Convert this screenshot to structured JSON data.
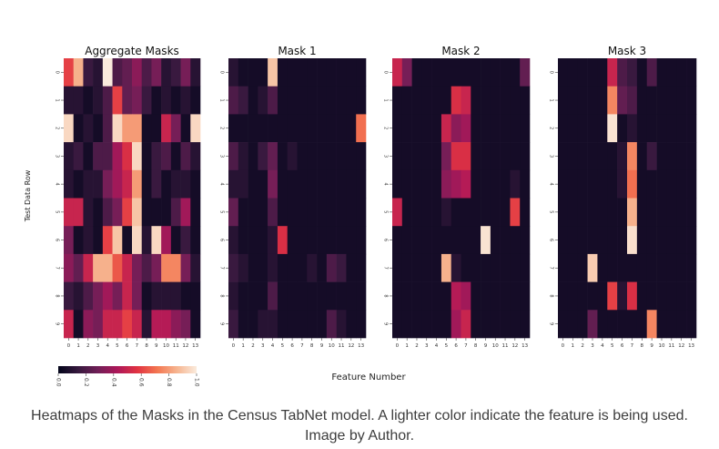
{
  "figure": {
    "ylabel": "Test Data Row",
    "xlabel": "Feature Number",
    "colorbar": {
      "ticks": [
        "0.0",
        "0.2",
        "0.4",
        "0.6",
        "0.8",
        "1.0"
      ],
      "colors": [
        "#03051a",
        "#36193e",
        "#701f57",
        "#ad1759",
        "#e13342",
        "#f37651",
        "#f6b48f",
        "#faebdd"
      ]
    }
  },
  "caption": "Heatmaps of the Masks in the Census TabNet model. A lighter color indicate the feature is being used. Image by Author.",
  "chart_data": [
    {
      "type": "heatmap",
      "title": "Aggregate Masks",
      "x": [
        "0",
        "1",
        "2",
        "3",
        "4",
        "5",
        "6",
        "7",
        "8",
        "9",
        "10",
        "11",
        "12",
        "13"
      ],
      "y": [
        "0",
        "1",
        "2",
        "3",
        "4",
        "5",
        "6",
        "7",
        "8",
        "9"
      ],
      "values": [
        [
          0.6,
          0.85,
          0.15,
          0.1,
          1.0,
          0.2,
          0.25,
          0.35,
          0.2,
          0.3,
          0.1,
          0.15,
          0.3,
          0.1
        ],
        [
          0.1,
          0.1,
          0.05,
          0.1,
          0.2,
          0.6,
          0.25,
          0.3,
          0.15,
          0.05,
          0.1,
          0.05,
          0.1,
          0.05
        ],
        [
          0.95,
          0.05,
          0.1,
          0.05,
          0.2,
          0.95,
          0.8,
          0.8,
          0.05,
          0.05,
          0.5,
          0.3,
          0.05,
          0.95
        ],
        [
          0.1,
          0.15,
          0.05,
          0.2,
          0.2,
          0.4,
          0.55,
          0.95,
          0.05,
          0.15,
          0.2,
          0.05,
          0.2,
          0.1
        ],
        [
          0.1,
          0.05,
          0.1,
          0.1,
          0.3,
          0.4,
          0.5,
          0.8,
          0.05,
          0.15,
          0.05,
          0.1,
          0.1,
          0.05
        ],
        [
          0.5,
          0.5,
          0.1,
          0.05,
          0.2,
          0.3,
          0.6,
          0.9,
          0.05,
          0.05,
          0.05,
          0.2,
          0.4,
          0.05
        ],
        [
          0.3,
          0.05,
          0.1,
          0.05,
          0.6,
          0.9,
          0.05,
          0.95,
          0.1,
          0.95,
          0.4,
          0.05,
          0.15,
          0.05
        ],
        [
          0.35,
          0.25,
          0.5,
          0.85,
          0.85,
          0.65,
          0.5,
          0.3,
          0.2,
          0.3,
          0.75,
          0.75,
          0.3,
          0.1
        ],
        [
          0.15,
          0.1,
          0.2,
          0.3,
          0.4,
          0.3,
          0.5,
          0.3,
          0.05,
          0.1,
          0.1,
          0.1,
          0.05,
          0.05
        ],
        [
          0.5,
          0.05,
          0.35,
          0.3,
          0.5,
          0.5,
          0.6,
          0.5,
          0.1,
          0.45,
          0.45,
          0.35,
          0.3,
          0.05
        ]
      ],
      "vmin": 0,
      "vmax": 1
    },
    {
      "type": "heatmap",
      "title": "Mask 1",
      "x": [
        "0",
        "1",
        "2",
        "3",
        "4",
        "5",
        "6",
        "7",
        "8",
        "9",
        "10",
        "11",
        "12",
        "13"
      ],
      "y": [
        "0",
        "1",
        "2",
        "3",
        "4",
        "5",
        "6",
        "7",
        "8",
        "9"
      ],
      "values": [
        [
          0.1,
          0.05,
          0.05,
          0.05,
          0.9,
          0.05,
          0.05,
          0.05,
          0.05,
          0.05,
          0.05,
          0.05,
          0.05,
          0.05
        ],
        [
          0.2,
          0.15,
          0.05,
          0.1,
          0.2,
          0.05,
          0.05,
          0.05,
          0.05,
          0.05,
          0.05,
          0.05,
          0.05,
          0.05
        ],
        [
          0.05,
          0.05,
          0.05,
          0.05,
          0.05,
          0.05,
          0.05,
          0.05,
          0.05,
          0.05,
          0.05,
          0.05,
          0.05,
          0.7
        ],
        [
          0.2,
          0.1,
          0.05,
          0.15,
          0.25,
          0.05,
          0.1,
          0.05,
          0.05,
          0.05,
          0.05,
          0.05,
          0.05,
          0.05
        ],
        [
          0.1,
          0.1,
          0.05,
          0.05,
          0.3,
          0.05,
          0.05,
          0.05,
          0.05,
          0.05,
          0.05,
          0.05,
          0.05,
          0.05
        ],
        [
          0.25,
          0.05,
          0.05,
          0.05,
          0.2,
          0.05,
          0.05,
          0.05,
          0.05,
          0.05,
          0.05,
          0.05,
          0.05,
          0.05
        ],
        [
          0.1,
          0.05,
          0.05,
          0.05,
          0.1,
          0.55,
          0.05,
          0.05,
          0.05,
          0.05,
          0.05,
          0.05,
          0.05,
          0.05
        ],
        [
          0.15,
          0.1,
          0.05,
          0.05,
          0.1,
          0.05,
          0.05,
          0.05,
          0.1,
          0.05,
          0.2,
          0.15,
          0.05,
          0.05
        ],
        [
          0.1,
          0.05,
          0.05,
          0.05,
          0.2,
          0.05,
          0.05,
          0.05,
          0.05,
          0.05,
          0.05,
          0.05,
          0.05,
          0.05
        ],
        [
          0.15,
          0.05,
          0.05,
          0.1,
          0.1,
          0.05,
          0.05,
          0.05,
          0.05,
          0.05,
          0.2,
          0.1,
          0.05,
          0.05
        ]
      ],
      "vmin": 0,
      "vmax": 1
    },
    {
      "type": "heatmap",
      "title": "Mask 2",
      "x": [
        "0",
        "1",
        "2",
        "3",
        "4",
        "5",
        "6",
        "7",
        "8",
        "9",
        "10",
        "11",
        "12",
        "13"
      ],
      "y": [
        "0",
        "1",
        "2",
        "3",
        "4",
        "5",
        "6",
        "7",
        "8",
        "9"
      ],
      "values": [
        [
          0.5,
          0.3,
          0.05,
          0.05,
          0.05,
          0.05,
          0.05,
          0.05,
          0.05,
          0.05,
          0.05,
          0.05,
          0.05,
          0.25
        ],
        [
          0.05,
          0.05,
          0.05,
          0.05,
          0.05,
          0.05,
          0.55,
          0.5,
          0.05,
          0.05,
          0.05,
          0.05,
          0.05,
          0.05
        ],
        [
          0.05,
          0.05,
          0.05,
          0.05,
          0.05,
          0.5,
          0.35,
          0.4,
          0.05,
          0.05,
          0.05,
          0.05,
          0.05,
          0.05
        ],
        [
          0.05,
          0.05,
          0.05,
          0.05,
          0.05,
          0.3,
          0.55,
          0.55,
          0.05,
          0.05,
          0.05,
          0.05,
          0.05,
          0.05
        ],
        [
          0.05,
          0.05,
          0.05,
          0.05,
          0.05,
          0.35,
          0.4,
          0.45,
          0.05,
          0.05,
          0.05,
          0.05,
          0.1,
          0.05
        ],
        [
          0.5,
          0.05,
          0.05,
          0.05,
          0.05,
          0.1,
          0.05,
          0.05,
          0.05,
          0.05,
          0.05,
          0.05,
          0.6,
          0.05
        ],
        [
          0.05,
          0.05,
          0.05,
          0.05,
          0.05,
          0.05,
          0.05,
          0.05,
          0.05,
          0.98,
          0.05,
          0.05,
          0.05,
          0.05
        ],
        [
          0.05,
          0.05,
          0.05,
          0.05,
          0.05,
          0.85,
          0.1,
          0.05,
          0.05,
          0.05,
          0.05,
          0.05,
          0.05,
          0.05
        ],
        [
          0.05,
          0.05,
          0.05,
          0.05,
          0.05,
          0.05,
          0.45,
          0.4,
          0.05,
          0.05,
          0.05,
          0.05,
          0.05,
          0.05
        ],
        [
          0.05,
          0.05,
          0.05,
          0.05,
          0.05,
          0.05,
          0.4,
          0.5,
          0.05,
          0.05,
          0.05,
          0.05,
          0.05,
          0.05
        ]
      ],
      "vmin": 0,
      "vmax": 1
    },
    {
      "type": "heatmap",
      "title": "Mask 3",
      "x": [
        "0",
        "1",
        "2",
        "3",
        "4",
        "5",
        "6",
        "7",
        "8",
        "9",
        "10",
        "11",
        "12",
        "13"
      ],
      "y": [
        "0",
        "1",
        "2",
        "3",
        "4",
        "5",
        "6",
        "7",
        "8",
        "9"
      ],
      "values": [
        [
          0.05,
          0.05,
          0.05,
          0.05,
          0.05,
          0.5,
          0.2,
          0.15,
          0.05,
          0.2,
          0.05,
          0.05,
          0.05,
          0.05
        ],
        [
          0.05,
          0.05,
          0.05,
          0.05,
          0.05,
          0.75,
          0.25,
          0.2,
          0.05,
          0.05,
          0.05,
          0.05,
          0.05,
          0.05
        ],
        [
          0.05,
          0.05,
          0.05,
          0.05,
          0.05,
          0.98,
          0.05,
          0.1,
          0.05,
          0.05,
          0.05,
          0.05,
          0.05,
          0.05
        ],
        [
          0.05,
          0.05,
          0.05,
          0.05,
          0.05,
          0.05,
          0.1,
          0.75,
          0.05,
          0.15,
          0.05,
          0.05,
          0.05,
          0.05
        ],
        [
          0.05,
          0.05,
          0.05,
          0.05,
          0.05,
          0.05,
          0.1,
          0.7,
          0.05,
          0.05,
          0.05,
          0.05,
          0.05,
          0.05
        ],
        [
          0.05,
          0.05,
          0.05,
          0.05,
          0.05,
          0.05,
          0.05,
          0.85,
          0.05,
          0.05,
          0.05,
          0.05,
          0.05,
          0.05
        ],
        [
          0.05,
          0.05,
          0.05,
          0.05,
          0.05,
          0.05,
          0.05,
          0.97,
          0.05,
          0.05,
          0.05,
          0.05,
          0.05,
          0.05
        ],
        [
          0.05,
          0.05,
          0.05,
          0.92,
          0.05,
          0.05,
          0.05,
          0.05,
          0.05,
          0.05,
          0.05,
          0.05,
          0.05,
          0.05
        ],
        [
          0.05,
          0.05,
          0.05,
          0.05,
          0.05,
          0.6,
          0.1,
          0.55,
          0.05,
          0.05,
          0.05,
          0.05,
          0.05,
          0.05
        ],
        [
          0.05,
          0.05,
          0.05,
          0.25,
          0.05,
          0.05,
          0.05,
          0.05,
          0.05,
          0.75,
          0.05,
          0.05,
          0.05,
          0.05
        ]
      ],
      "vmin": 0,
      "vmax": 1
    }
  ]
}
